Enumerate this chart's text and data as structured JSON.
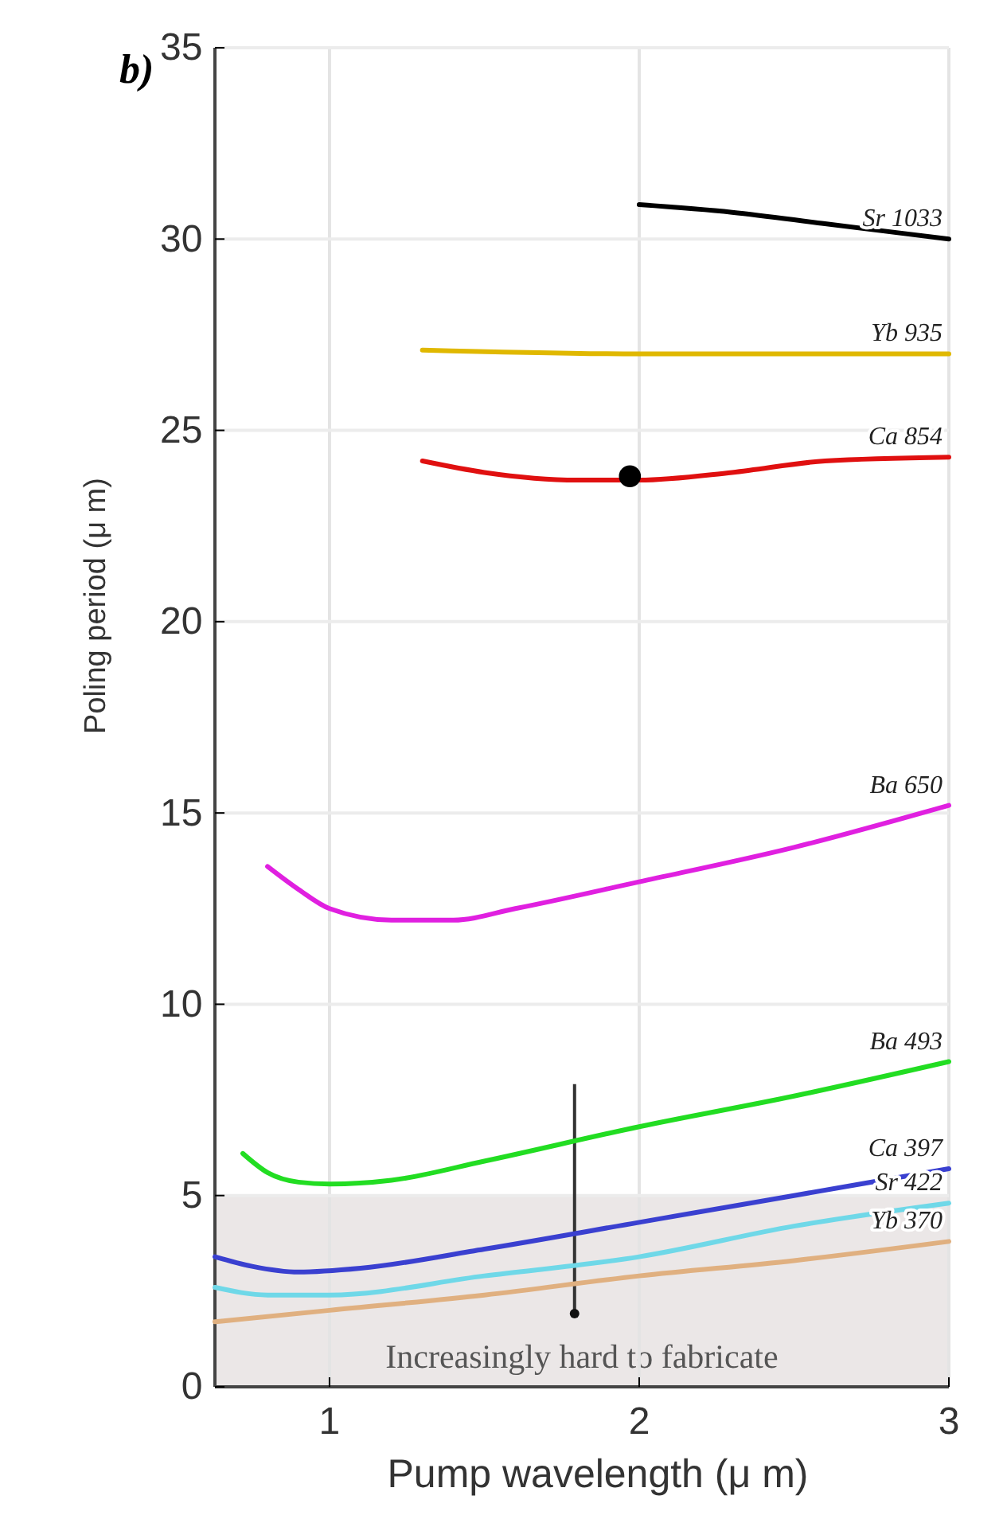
{
  "chart_data": {
    "type": "line",
    "title": "b)",
    "xlabel": "Pump wavelength (μ m)",
    "ylabel": "Poling period (μ m)",
    "xlim": [
      0.63,
      3
    ],
    "xticks": [
      1,
      2,
      3
    ],
    "ylim": [
      0,
      35
    ],
    "yticks": [
      0,
      5,
      10,
      15,
      20,
      25,
      30,
      35
    ],
    "grid": true,
    "marker": "none",
    "line_style": "solid",
    "bands": [
      {
        "axis": "y",
        "from": 0,
        "to": 5,
        "label": "Increasingly hard to fabricate",
        "color": "#ebe7e7"
      }
    ],
    "series": [
      {
        "name": "Sr 1033",
        "color": "#000000",
        "x": [
          2.0,
          2.3,
          2.6,
          3.0
        ],
        "values": [
          30.9,
          30.7,
          30.4,
          30.0
        ]
      },
      {
        "name": "Yb 935",
        "color": "#e0b800",
        "x": [
          1.3,
          2.0,
          3.0
        ],
        "values": [
          27.1,
          27.0,
          27.0
        ]
      },
      {
        "name": "Ca 854",
        "color": "#e01010",
        "x": [
          1.3,
          1.5,
          1.8,
          2.0,
          2.3,
          2.6,
          3.0
        ],
        "values": [
          24.2,
          23.9,
          23.7,
          23.7,
          23.9,
          24.2,
          24.3
        ]
      },
      {
        "name": "Ba 650",
        "color": "#e020e0",
        "x": [
          0.8,
          0.9,
          1.0,
          1.2,
          1.4,
          1.6,
          2.0,
          2.5,
          3.0
        ],
        "values": [
          13.6,
          13.0,
          12.5,
          12.2,
          12.2,
          12.5,
          13.2,
          14.1,
          15.2
        ]
      },
      {
        "name": "Ba 493",
        "color": "#22dd22",
        "x": [
          0.72,
          0.8,
          0.9,
          1.0,
          1.2,
          1.5,
          2.0,
          2.5,
          3.0
        ],
        "values": [
          6.1,
          5.6,
          5.35,
          5.3,
          5.4,
          5.9,
          6.8,
          7.6,
          8.5
        ]
      },
      {
        "name": "Ca 397",
        "color": "#3a40d0",
        "x": [
          0.63,
          0.75,
          0.9,
          1.1,
          1.5,
          2.0,
          2.5,
          3.0
        ],
        "values": [
          3.4,
          3.15,
          3.0,
          3.1,
          3.6,
          4.3,
          5.0,
          5.7
        ]
      },
      {
        "name": "Sr 422",
        "color": "#6fd8e8",
        "x": [
          0.63,
          0.8,
          1.0,
          1.5,
          2.0,
          2.5,
          3.0
        ],
        "values": [
          2.6,
          2.4,
          2.4,
          2.9,
          3.4,
          4.2,
          4.8
        ]
      },
      {
        "name": "Yb 370",
        "color": "#e0b080",
        "x": [
          0.63,
          1.0,
          1.5,
          2.0,
          2.5,
          3.0
        ],
        "values": [
          1.7,
          2.0,
          2.4,
          2.9,
          3.3,
          3.8
        ]
      },
      {
        "type": "scatter",
        "marker": "circle",
        "color": "#000000",
        "x": [
          1.97
        ],
        "values": [
          23.8
        ]
      }
    ]
  }
}
